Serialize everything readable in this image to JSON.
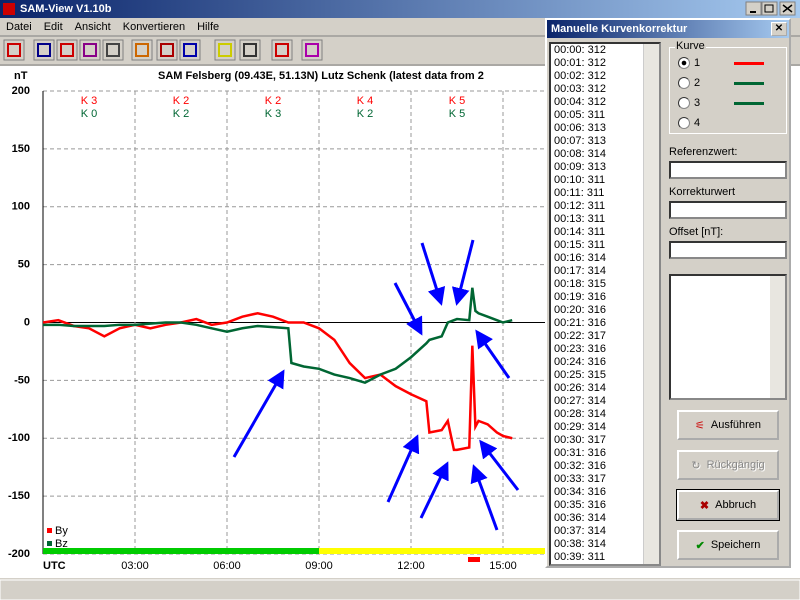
{
  "window": {
    "title": "SAM-View V1.10b"
  },
  "menu": [
    "Datei",
    "Edit",
    "Ansicht",
    "Konvertieren",
    "Hilfe"
  ],
  "chart_data": {
    "type": "line",
    "title": "SAM Felsberg (09.43E, 51.13N) Lutz Schenk (latest data from 2",
    "y_label": "nT",
    "x_label": "UTC",
    "xlim": [
      0,
      24
    ],
    "ylim": [
      -200,
      200
    ],
    "yticks": [
      -200,
      -150,
      -100,
      -50,
      0,
      50,
      100,
      150,
      200
    ],
    "xticks": [
      {
        "value": 3,
        "label": "03:00"
      },
      {
        "value": 6,
        "label": "06:00"
      },
      {
        "value": 9,
        "label": "09:00"
      },
      {
        "value": 12,
        "label": "12:00"
      },
      {
        "value": 15,
        "label": "15:00"
      }
    ],
    "grid": true,
    "k_indices": [
      [
        "K 3",
        "K 0"
      ],
      [
        "K 2",
        "K 2"
      ],
      [
        "K 2",
        "K 3"
      ],
      [
        "K 4",
        "K 2"
      ],
      [
        "K 5",
        "K 5"
      ]
    ],
    "x": [
      0,
      0.5,
      1,
      1.5,
      2,
      2.5,
      3,
      3.5,
      4,
      4.5,
      5,
      5.5,
      6,
      6.5,
      7,
      7.5,
      8,
      8.1,
      8.5,
      9,
      9.5,
      10,
      10.5,
      11,
      11.5,
      12,
      12.5,
      12.6,
      13,
      13.2,
      13.4,
      13.5,
      13.9,
      14,
      14.1,
      14.2,
      14.5,
      14.8,
      15,
      15.3
    ],
    "series": [
      {
        "name": "By",
        "color": "#ff0000",
        "values": [
          0,
          2,
          -3,
          -5,
          -12,
          -5,
          -2,
          -5,
          -2,
          0,
          3,
          -2,
          0,
          5,
          8,
          5,
          0,
          0,
          0,
          -5,
          -15,
          -35,
          -48,
          -45,
          -55,
          -62,
          -68,
          -95,
          -93,
          -85,
          -110,
          -110,
          -108,
          -20,
          -90,
          -85,
          -88,
          -95,
          -98,
          -100
        ]
      },
      {
        "name": "Bz",
        "color": "#006633",
        "values": [
          -2,
          -2,
          -3,
          -3,
          -3,
          -2,
          -2,
          -1,
          0,
          0,
          -2,
          -5,
          -8,
          -5,
          -3,
          -4,
          -5,
          -35,
          -38,
          -40,
          -45,
          -48,
          -52,
          -45,
          -40,
          -30,
          -18,
          -15,
          -12,
          0,
          2,
          3,
          2,
          30,
          10,
          8,
          5,
          2,
          0,
          2
        ]
      }
    ]
  },
  "dialog": {
    "title": "Manuelle Kurvenkorrektur",
    "list": [
      "00:00: 312",
      "00:01: 312",
      "00:02: 312",
      "00:03: 312",
      "00:04: 312",
      "00:05: 311",
      "00:06: 313",
      "00:07: 313",
      "00:08: 314",
      "00:09: 313",
      "00:10: 311",
      "00:11: 311",
      "00:12: 311",
      "00:13: 311",
      "00:14: 311",
      "00:15: 311",
      "00:16: 314",
      "00:17: 314",
      "00:18: 315",
      "00:19: 316",
      "00:20: 316",
      "00:21: 316",
      "00:22: 317",
      "00:23: 316",
      "00:24: 316",
      "00:25: 315",
      "00:26: 314",
      "00:27: 314",
      "00:28: 314",
      "00:29: 314",
      "00:30: 317",
      "00:31: 316",
      "00:32: 316",
      "00:33: 317",
      "00:34: 316",
      "00:35: 316",
      "00:36: 314",
      "00:37: 314",
      "00:38: 314",
      "00:39: 311"
    ],
    "group_label": "Kurve",
    "radios": [
      "1",
      "2",
      "3",
      "4"
    ],
    "fields": [
      "Referenzwert:",
      "Korrekturwert",
      "Offset [nT]:"
    ],
    "buttons": [
      "Ausführen",
      "Rückgängig",
      "Abbruch",
      "Speichern"
    ]
  }
}
